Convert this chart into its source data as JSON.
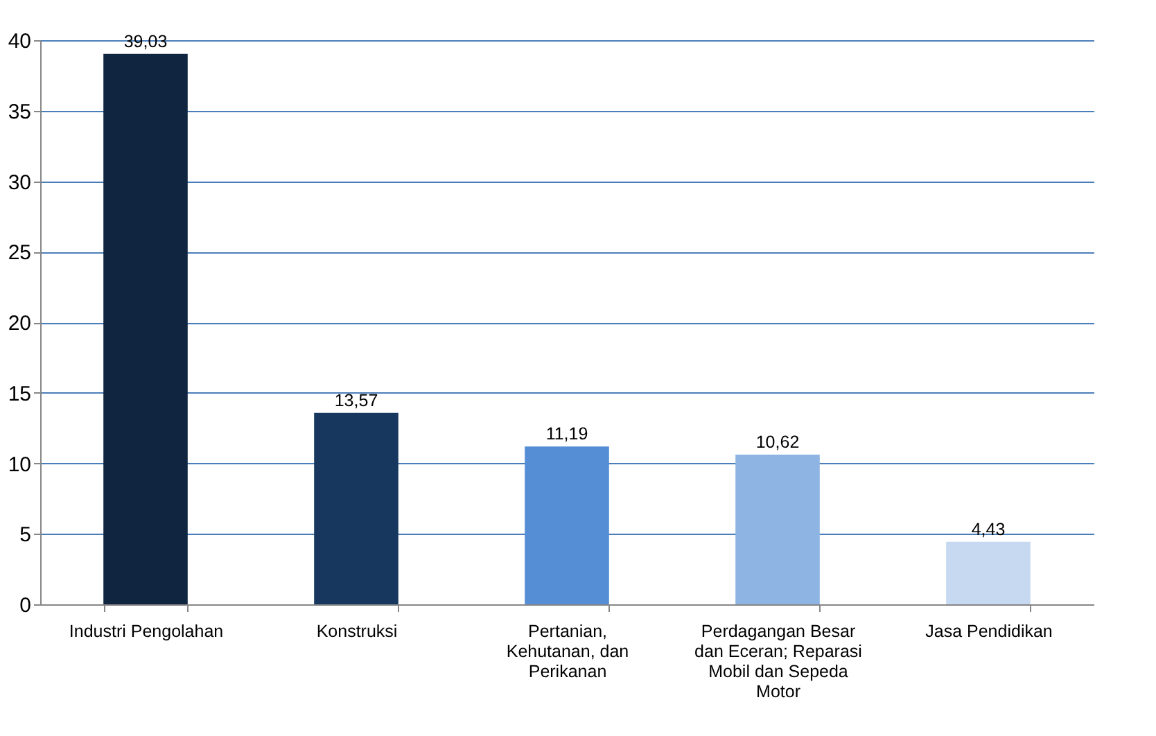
{
  "chart_data": {
    "type": "bar",
    "categories": [
      "Industri Pengolahan",
      "Konstruksi",
      "Pertanian, Kehutanan, dan Perikanan",
      "Perdagangan Besar dan Eceran; Reparasi Mobil dan Sepeda Motor",
      "Jasa Pendidikan"
    ],
    "values": [
      39.03,
      13.57,
      11.19,
      10.62,
      4.43
    ],
    "colors": [
      "#10253f",
      "#17375e",
      "#558ed5",
      "#8db4e2",
      "#c6d9f1"
    ],
    "value_labels": [
      "39,03",
      "13,57",
      "11,19",
      "10,62",
      "4,43"
    ],
    "ylim": [
      0,
      40
    ],
    "yticks": [
      0,
      5,
      10,
      15,
      20,
      25,
      30,
      35,
      40
    ],
    "grid": "y"
  }
}
